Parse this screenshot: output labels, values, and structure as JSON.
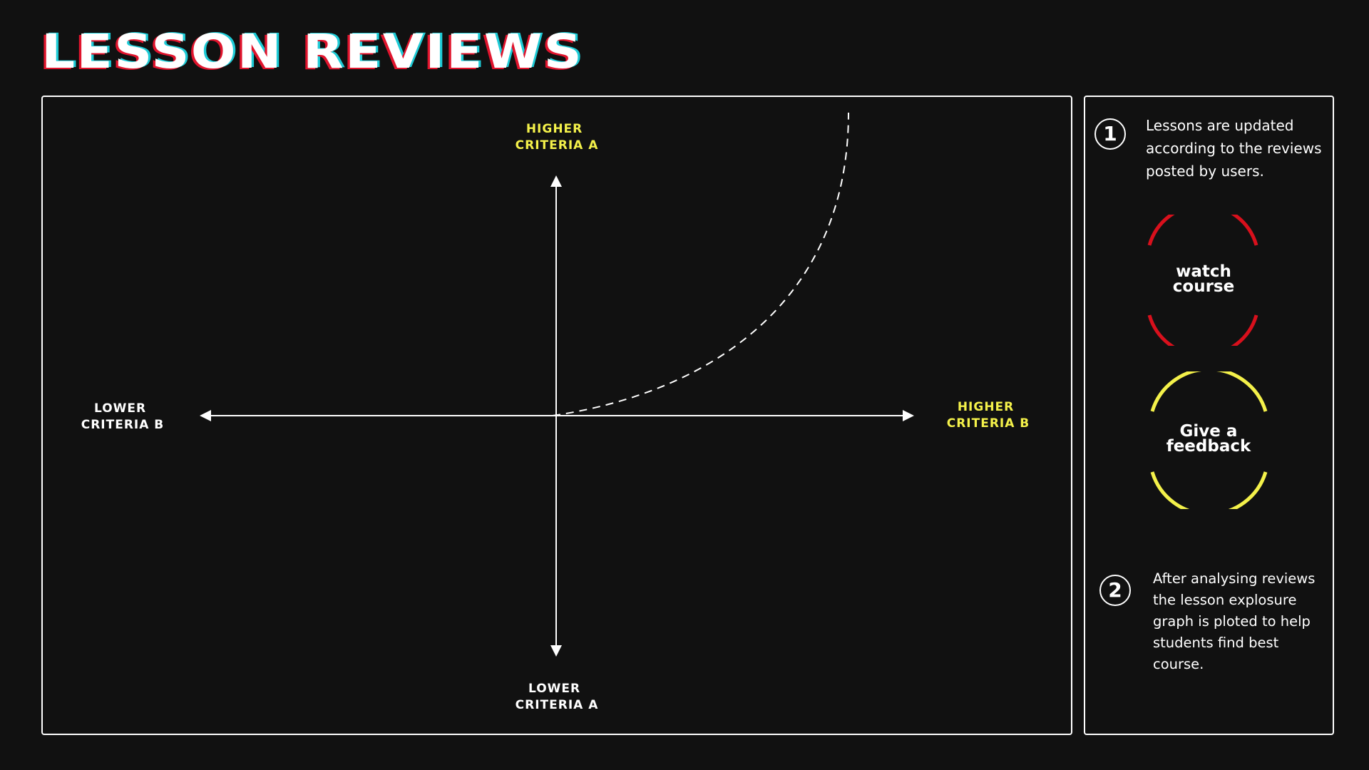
{
  "page": {
    "title": "LESSON REVIEWS"
  },
  "diagram": {
    "top_label": [
      "HIGHER",
      "CRITERIA A"
    ],
    "bottom_label": [
      "LOWER",
      "CRITERIA A"
    ],
    "left_label": [
      "LOWER",
      "CRITERIA B"
    ],
    "right_label": [
      "HIGHER",
      "CRITERIA B"
    ],
    "curve_style": "dashed",
    "colors": {
      "highlight": "#f4f14a",
      "axis": "#ffffff"
    }
  },
  "sidebar": {
    "step1": {
      "number": "1",
      "text": "Lessons are updated according to the reviews posted by users."
    },
    "watch_badge": {
      "line1": "watch",
      "line2": "course",
      "color": "#d8101c"
    },
    "feedback_badge": {
      "line1": "Give a",
      "line2": "feedback",
      "color": "#f4f14a"
    },
    "step2": {
      "number": "2",
      "text": "After analysing reviews the lesson explosure graph is ploted to help students find best course."
    }
  }
}
